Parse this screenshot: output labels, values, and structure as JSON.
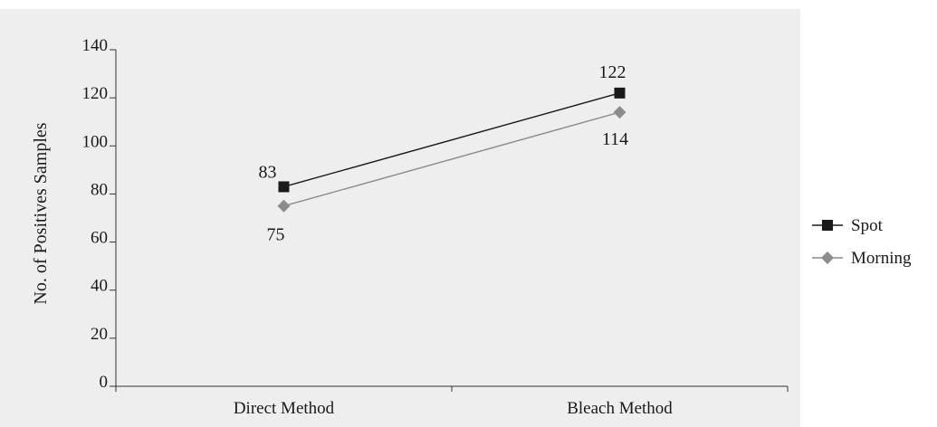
{
  "chart_data": {
    "type": "line",
    "categories": [
      "Direct Method",
      "Bleach Method"
    ],
    "series": [
      {
        "name": "Spot",
        "values": [
          83,
          122
        ],
        "color": "#1a1a1a",
        "marker": "square",
        "labels": [
          "83",
          "122"
        ]
      },
      {
        "name": "Morning",
        "values": [
          75,
          114
        ],
        "color": "#8c8c8c",
        "marker": "diamond",
        "labels": [
          "75",
          "114"
        ]
      }
    ],
    "ylabel": "No. of Positives Samples",
    "xlabel": "",
    "ylim": [
      0,
      140
    ],
    "yticks": [
      0,
      20,
      40,
      60,
      80,
      100,
      120,
      140
    ],
    "ytick_labels": [
      "0",
      "20",
      "40",
      "60",
      "80",
      "100",
      "120",
      "140"
    ],
    "legend_position": "right",
    "grid": false,
    "plot_background": "#eeeeee"
  }
}
